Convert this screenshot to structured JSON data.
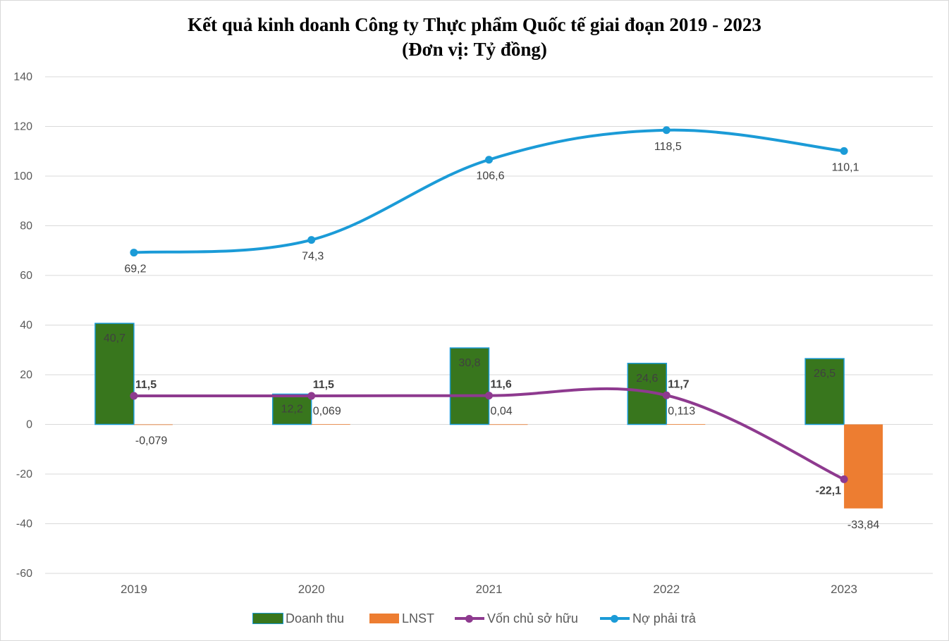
{
  "title_line1": "Kết quả kinh doanh Công ty  Thực phẩm Quốc tế giai đoạn 2019 - 2023",
  "title_line2": "(Đơn vị: Tỷ đồng)",
  "chart_data": {
    "type": "bar",
    "title": "Kết quả kinh doanh Công ty  Thực phẩm Quốc tế giai đoạn 2019 - 2023",
    "subtitle": "(Đơn vị: Tỷ đồng)",
    "categories": [
      "2019",
      "2020",
      "2021",
      "2022",
      "2023"
    ],
    "ylim": [
      -60,
      140
    ],
    "yticks": [
      140,
      120,
      100,
      80,
      60,
      40,
      20,
      0,
      -20,
      -40,
      -60
    ],
    "grid": true,
    "legend_position": "bottom",
    "series": [
      {
        "name": "Doanh thu",
        "kind": "bar",
        "color": "#38761d",
        "values": [
          40.7,
          12.2,
          30.8,
          24.6,
          26.5
        ],
        "labels": [
          "40,7",
          "12,2",
          "30,8",
          "24,6",
          "26,5"
        ]
      },
      {
        "name": "LNST",
        "kind": "bar",
        "color": "#ed7d31",
        "values": [
          -0.079,
          0.069,
          0.04,
          0.113,
          -33.84
        ],
        "labels": [
          "-0,079",
          "0,069",
          "0,04",
          "0,113",
          "-33,84"
        ]
      },
      {
        "name": "Vốn chủ sở hữu",
        "kind": "line",
        "color": "#8e3a8f",
        "values": [
          11.5,
          11.5,
          11.6,
          11.7,
          -22.1
        ],
        "labels": [
          "11,5",
          "11,5",
          "11,6",
          "11,7",
          "-22,1"
        ]
      },
      {
        "name": "Nợ phải trả",
        "kind": "line",
        "color": "#1b9bd7",
        "values": [
          69.2,
          74.3,
          106.6,
          118.5,
          110.1
        ],
        "labels": [
          "69,2",
          "74,3",
          "106,6",
          "118,5",
          "110,1"
        ]
      }
    ]
  }
}
